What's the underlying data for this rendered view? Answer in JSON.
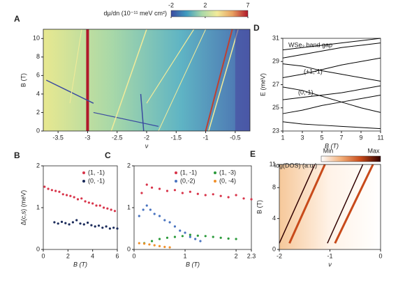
{
  "chart_data": [
    {
      "type": "heatmap",
      "label": "A",
      "colorbar_title": "dμ/dn (10⁻¹¹ meV cm²)",
      "clim": [
        -2,
        7
      ],
      "cticks": [
        -2,
        2,
        7
      ],
      "colormap": [
        "#3b4ba0",
        "#3f9bbf",
        "#a8d8a8",
        "#f2eb9a",
        "#e8a060",
        "#b0182a"
      ],
      "xlabel": "ν",
      "ylabel": "B (T)",
      "xlim": [
        -3.75,
        -0.25
      ],
      "xticks": [
        -3.5,
        -3,
        -2.5,
        -2,
        -1.5,
        -1,
        -0.5
      ],
      "ylim": [
        0,
        11
      ],
      "yticks": [
        0,
        2,
        4,
        6,
        8,
        10
      ]
    },
    {
      "type": "line",
      "label": "D",
      "title": "WSe₂ band gap",
      "annotations": [
        "(+1,-1)",
        "(0,-1)"
      ],
      "color": "#000000",
      "xlabel": "B (T)",
      "ylabel": "E (meV)",
      "xlim": [
        1,
        11
      ],
      "xticks": [
        1,
        3,
        5,
        7,
        9,
        11
      ],
      "ylim": [
        23,
        31
      ],
      "yticks": [
        23,
        25,
        27,
        29,
        31
      ],
      "x": [
        1,
        3,
        5,
        7,
        9,
        11
      ],
      "series": [
        {
          "values": [
            30,
            30.2,
            30.4,
            30.6,
            30.8,
            31
          ]
        },
        {
          "values": [
            29.3,
            29.6,
            29.9,
            30.2,
            30.4,
            30.6
          ]
        },
        {
          "values": [
            28.8,
            28.6,
            28.2,
            27.9,
            27.6,
            27.3
          ]
        },
        {
          "values": [
            27.6,
            27.9,
            28.3,
            28.7,
            29.0,
            29.3
          ]
        },
        {
          "values": [
            26.8,
            26.5,
            26.0,
            25.5,
            25.0,
            24.6
          ]
        },
        {
          "values": [
            25.7,
            25.9,
            26.1,
            26.3,
            26.6,
            26.9
          ]
        },
        {
          "values": [
            24.5,
            24.8,
            25.2,
            25.5,
            25.8,
            26.1
          ]
        },
        {
          "values": [
            23.8,
            23.6,
            23.5,
            23.4,
            23.3,
            23.2
          ]
        }
      ]
    },
    {
      "type": "scatter",
      "label": "B",
      "xlabel": "B (T)",
      "ylabel": "Δ(c,s) (meV)",
      "xlim": [
        0,
        6
      ],
      "xticks": [
        0,
        2,
        4,
        6
      ],
      "ylim": [
        0,
        2
      ],
      "yticks": [
        0,
        1,
        2
      ],
      "series": [
        {
          "name": "(1, -1)",
          "color": "#d8344a",
          "x": [
            0.1,
            0.4,
            0.7,
            1.0,
            1.3,
            1.6,
            1.9,
            2.2,
            2.5,
            2.8,
            3.1,
            3.4,
            3.7,
            4.0,
            4.3,
            4.6,
            4.9,
            5.2,
            5.5,
            5.8
          ],
          "values": [
            1.5,
            1.45,
            1.42,
            1.4,
            1.38,
            1.32,
            1.3,
            1.28,
            1.25,
            1.2,
            1.22,
            1.15,
            1.12,
            1.1,
            1.05,
            1.05,
            1.0,
            0.98,
            0.95,
            0.92
          ]
        },
        {
          "name": "(0, -1)",
          "color": "#1a2a5a",
          "x": [
            0.9,
            1.2,
            1.5,
            1.8,
            2.1,
            2.4,
            2.7,
            3.0,
            3.3,
            3.6,
            3.9,
            4.2,
            4.5,
            4.8,
            5.1,
            5.4,
            5.7,
            6.0
          ],
          "values": [
            0.65,
            0.62,
            0.66,
            0.63,
            0.6,
            0.65,
            0.7,
            0.62,
            0.6,
            0.64,
            0.58,
            0.55,
            0.57,
            0.52,
            0.55,
            0.5,
            0.52,
            0.5
          ]
        }
      ]
    },
    {
      "type": "scatter",
      "label": "C",
      "xlabel": "B (T)",
      "xlim": [
        0,
        2.3
      ],
      "xticks": [
        0,
        1,
        2,
        2.3
      ],
      "ylim": [
        0,
        2
      ],
      "yticks": [
        0,
        1,
        2
      ],
      "series": [
        {
          "name": "(1, -1)",
          "color": "#d8344a",
          "x": [
            0.15,
            0.25,
            0.35,
            0.5,
            0.65,
            0.8,
            0.95,
            1.1,
            1.25,
            1.4,
            1.55,
            1.7,
            1.85,
            2.0,
            2.15,
            2.3
          ],
          "values": [
            1.35,
            1.55,
            1.48,
            1.45,
            1.4,
            1.42,
            1.35,
            1.38,
            1.33,
            1.3,
            1.32,
            1.28,
            1.25,
            1.3,
            1.22,
            1.2
          ]
        },
        {
          "name": "(0,-2)",
          "color": "#4a74c0",
          "x": [
            0.1,
            0.18,
            0.25,
            0.32,
            0.4,
            0.5,
            0.6,
            0.7,
            0.8,
            0.9,
            1.0,
            1.1,
            1.2,
            1.3
          ],
          "values": [
            0.8,
            0.95,
            1.05,
            0.95,
            0.85,
            0.8,
            0.7,
            0.65,
            0.55,
            0.45,
            0.4,
            0.3,
            0.25,
            0.2
          ]
        },
        {
          "name": "(1, -3)",
          "color": "#2a9a3a",
          "x": [
            0.2,
            0.35,
            0.5,
            0.65,
            0.8,
            0.95,
            1.1,
            1.25,
            1.4,
            1.55,
            1.7,
            1.85,
            2.0
          ],
          "values": [
            0.15,
            0.2,
            0.25,
            0.28,
            0.3,
            0.32,
            0.35,
            0.33,
            0.32,
            0.3,
            0.28,
            0.26,
            0.25
          ]
        },
        {
          "name": "(0, -4)",
          "color": "#f0902a",
          "x": [
            0.1,
            0.2,
            0.3,
            0.4,
            0.5,
            0.6,
            0.7
          ],
          "values": [
            0.15,
            0.14,
            0.12,
            0.1,
            0.08,
            0.06,
            0.05
          ]
        }
      ]
    },
    {
      "type": "heatmap",
      "label": "E",
      "colorbar_title": "log(DOS) (a.u.)",
      "clabels": [
        "Min",
        "Max"
      ],
      "colormap": [
        "#ffffff",
        "#f3b07a",
        "#c84a1a",
        "#300000"
      ],
      "xlabel": "ν",
      "ylabel": "B (T)",
      "xlim": [
        -2,
        0
      ],
      "xticks": [
        -2,
        -1,
        0
      ],
      "ylim": [
        0,
        11
      ],
      "yticks": [
        0,
        4,
        8,
        11
      ]
    }
  ]
}
